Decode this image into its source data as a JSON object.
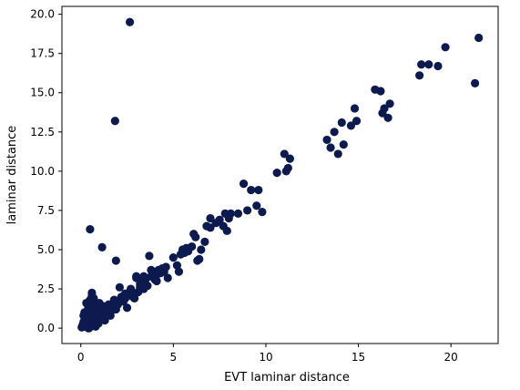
{
  "chart_data": {
    "type": "scatter",
    "title": "",
    "xlabel": "EVT laminar distance",
    "ylabel": "laminar distance",
    "xlim": [
      -1.02,
      22.55
    ],
    "ylim": [
      -0.98,
      20.5
    ],
    "xticks": [
      0,
      5,
      10,
      15,
      20
    ],
    "xtick_labels": [
      "0",
      "5",
      "10",
      "15",
      "20"
    ],
    "yticks": [
      0.0,
      2.5,
      5.0,
      7.5,
      10.0,
      12.5,
      15.0,
      17.5,
      20.0
    ],
    "ytick_labels": [
      "0.0",
      "2.5",
      "5.0",
      "7.5",
      "10.0",
      "12.5",
      "15.0",
      "17.5",
      "20.0"
    ],
    "grid": false,
    "legend": "none",
    "marker_color": "#0c1a4f",
    "points": [
      [
        0.05,
        0.05
      ],
      [
        0.1,
        0.2
      ],
      [
        0.15,
        0.4
      ],
      [
        0.2,
        0.1
      ],
      [
        0.25,
        0.6
      ],
      [
        0.3,
        0.3
      ],
      [
        0.35,
        0.9
      ],
      [
        0.4,
        0.0
      ],
      [
        0.45,
        0.5
      ],
      [
        0.5,
        1.2
      ],
      [
        0.55,
        0.2
      ],
      [
        0.6,
        0.8
      ],
      [
        0.65,
        1.5
      ],
      [
        0.7,
        0.4
      ],
      [
        0.75,
        1.0
      ],
      [
        0.8,
        0.1
      ],
      [
        0.85,
        0.7
      ],
      [
        0.9,
        1.3
      ],
      [
        0.95,
        0.3
      ],
      [
        1.0,
        0.9
      ],
      [
        1.05,
        0.5
      ],
      [
        1.1,
        1.1
      ],
      [
        0.2,
        1.0
      ],
      [
        0.3,
        1.6
      ],
      [
        0.4,
        1.4
      ],
      [
        0.5,
        1.8
      ],
      [
        0.6,
        2.1
      ],
      [
        0.45,
        0.0
      ],
      [
        0.25,
        0.3
      ],
      [
        0.7,
        1.9
      ],
      [
        0.8,
        1.2
      ],
      [
        0.35,
        0.2
      ],
      [
        0.15,
        0.8
      ],
      [
        0.55,
        0.6
      ],
      [
        0.65,
        0.9
      ],
      [
        0.9,
        0.6
      ],
      [
        1.0,
        1.6
      ],
      [
        0.3,
        0.75
      ],
      [
        0.5,
        1.4
      ],
      [
        0.6,
        2.25
      ],
      [
        1.2,
        0.9
      ],
      [
        1.3,
        0.5
      ],
      [
        1.4,
        1.1
      ],
      [
        1.5,
        1.5
      ],
      [
        1.6,
        0.8
      ],
      [
        1.7,
        1.3
      ],
      [
        1.8,
        1.6
      ],
      [
        1.9,
        1.2
      ],
      [
        2.0,
        1.5
      ],
      [
        2.1,
        1.8
      ],
      [
        2.2,
        2.0
      ],
      [
        2.3,
        1.7
      ],
      [
        2.4,
        2.2
      ],
      [
        2.5,
        1.3
      ],
      [
        2.6,
        2.1
      ],
      [
        2.7,
        2.5
      ],
      [
        2.8,
        2.0
      ],
      [
        2.9,
        1.9
      ],
      [
        3.0,
        3.2
      ],
      [
        3.1,
        2.3
      ],
      [
        3.2,
        2.8
      ],
      [
        3.3,
        3.0
      ],
      [
        3.4,
        2.5
      ],
      [
        3.5,
        3.1
      ],
      [
        3.6,
        2.7
      ],
      [
        3.7,
        4.6
      ],
      [
        3.8,
        3.3
      ],
      [
        3.9,
        3.6
      ],
      [
        4.0,
        3.1
      ],
      [
        4.1,
        3.4
      ],
      [
        4.2,
        3.7
      ],
      [
        4.3,
        3.5
      ],
      [
        4.4,
        3.8
      ],
      [
        4.5,
        3.6
      ],
      [
        4.6,
        3.9
      ],
      [
        4.7,
        3.2
      ],
      [
        2.1,
        2.6
      ],
      [
        2.7,
        2.4
      ],
      [
        3.0,
        3.3
      ],
      [
        3.4,
        3.3
      ],
      [
        1.2,
        1.4
      ],
      [
        1.6,
        1.0
      ],
      [
        1.8,
        1.8
      ],
      [
        2.4,
        1.9
      ],
      [
        3.2,
        2.6
      ],
      [
        3.8,
        3.7
      ],
      [
        4.1,
        3.0
      ],
      [
        5.0,
        4.5
      ],
      [
        5.2,
        4.0
      ],
      [
        5.3,
        3.6
      ],
      [
        5.4,
        4.7
      ],
      [
        5.5,
        5.0
      ],
      [
        5.6,
        4.8
      ],
      [
        5.7,
        5.1
      ],
      [
        5.8,
        4.9
      ],
      [
        6.0,
        5.2
      ],
      [
        6.1,
        6.0
      ],
      [
        6.2,
        5.8
      ],
      [
        6.3,
        4.3
      ],
      [
        6.4,
        4.4
      ],
      [
        6.5,
        5.0
      ],
      [
        6.7,
        5.5
      ],
      [
        6.8,
        6.5
      ],
      [
        7.0,
        6.4
      ],
      [
        7.0,
        7.0
      ],
      [
        7.3,
        6.7
      ],
      [
        7.5,
        6.9
      ],
      [
        7.7,
        6.5
      ],
      [
        7.8,
        7.3
      ],
      [
        7.9,
        6.2
      ],
      [
        8.0,
        7.0
      ],
      [
        8.1,
        7.3
      ],
      [
        8.5,
        7.3
      ],
      [
        8.8,
        9.2
      ],
      [
        9.0,
        7.5
      ],
      [
        9.2,
        8.8
      ],
      [
        9.5,
        7.8
      ],
      [
        9.6,
        8.8
      ],
      [
        9.8,
        7.4
      ],
      [
        10.6,
        9.9
      ],
      [
        11.0,
        11.1
      ],
      [
        11.1,
        10.0
      ],
      [
        11.2,
        10.2
      ],
      [
        11.3,
        10.8
      ],
      [
        13.3,
        12.0
      ],
      [
        13.5,
        11.5
      ],
      [
        13.7,
        12.5
      ],
      [
        13.9,
        11.1
      ],
      [
        14.1,
        13.1
      ],
      [
        14.2,
        11.7
      ],
      [
        14.6,
        12.9
      ],
      [
        14.8,
        14.0
      ],
      [
        14.9,
        13.2
      ],
      [
        15.9,
        15.2
      ],
      [
        16.2,
        15.1
      ],
      [
        16.3,
        13.7
      ],
      [
        16.4,
        14.0
      ],
      [
        16.6,
        13.4
      ],
      [
        16.7,
        14.3
      ],
      [
        18.3,
        16.1
      ],
      [
        18.4,
        16.8
      ],
      [
        18.8,
        16.8
      ],
      [
        19.3,
        16.7
      ],
      [
        19.7,
        17.9
      ],
      [
        21.3,
        15.6
      ],
      [
        21.5,
        18.5
      ],
      [
        0.5,
        6.3
      ],
      [
        1.15,
        5.15
      ],
      [
        1.9,
        4.3
      ],
      [
        1.85,
        13.2
      ],
      [
        2.65,
        19.5
      ]
    ]
  }
}
